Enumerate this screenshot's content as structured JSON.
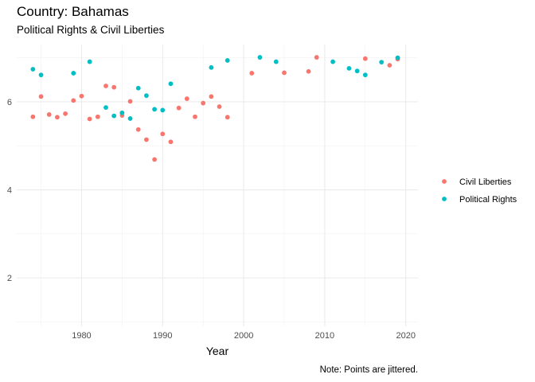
{
  "header": {
    "title": "Country: Bahamas",
    "subtitle": "Political Rights & Civil Liberties",
    "caption": "Note: Points are jittered."
  },
  "chart_data": {
    "type": "scatter",
    "xlabel": "Year",
    "ylabel": "",
    "xlim": [
      1972,
      2021.5
    ],
    "ylim": [
      0.9,
      7.3
    ],
    "x_ticks": [
      1980,
      1990,
      2000,
      2010,
      2020
    ],
    "y_ticks": [
      2,
      4,
      6
    ],
    "grid": true,
    "legend_position": "right",
    "series": [
      {
        "name": "Civil Liberties",
        "color": "#F8766D",
        "points": [
          {
            "x": 1974,
            "y": 5.66
          },
          {
            "x": 1975,
            "y": 6.12
          },
          {
            "x": 1976,
            "y": 5.71
          },
          {
            "x": 1977,
            "y": 5.65
          },
          {
            "x": 1978,
            "y": 5.73
          },
          {
            "x": 1979,
            "y": 6.03
          },
          {
            "x": 1980,
            "y": 6.13
          },
          {
            "x": 1981,
            "y": 5.61
          },
          {
            "x": 1982,
            "y": 5.66
          },
          {
            "x": 1983,
            "y": 6.36
          },
          {
            "x": 1984,
            "y": 6.33
          },
          {
            "x": 1985,
            "y": 5.69
          },
          {
            "x": 1986,
            "y": 6.01
          },
          {
            "x": 1987,
            "y": 5.37
          },
          {
            "x": 1988,
            "y": 5.14
          },
          {
            "x": 1989,
            "y": 4.69
          },
          {
            "x": 1990,
            "y": 5.27
          },
          {
            "x": 1991,
            "y": 5.09
          },
          {
            "x": 1992,
            "y": 5.86
          },
          {
            "x": 1993,
            "y": 6.07
          },
          {
            "x": 1994,
            "y": 5.66
          },
          {
            "x": 1995,
            "y": 5.97
          },
          {
            "x": 1996,
            "y": 6.12
          },
          {
            "x": 1997,
            "y": 5.89
          },
          {
            "x": 1998,
            "y": 5.65
          },
          {
            "x": 2001,
            "y": 6.65
          },
          {
            "x": 2005,
            "y": 6.66
          },
          {
            "x": 2008,
            "y": 6.69
          },
          {
            "x": 2009,
            "y": 7.01
          },
          {
            "x": 2015,
            "y": 6.98
          },
          {
            "x": 2018,
            "y": 6.83
          },
          {
            "x": 2019,
            "y": 6.97
          }
        ]
      },
      {
        "name": "Political Rights",
        "color": "#00BFC4",
        "points": [
          {
            "x": 1974,
            "y": 6.74
          },
          {
            "x": 1975,
            "y": 6.61
          },
          {
            "x": 1979,
            "y": 6.65
          },
          {
            "x": 1981,
            "y": 6.91
          },
          {
            "x": 1983,
            "y": 5.87
          },
          {
            "x": 1984,
            "y": 5.68
          },
          {
            "x": 1985,
            "y": 5.75
          },
          {
            "x": 1986,
            "y": 5.62
          },
          {
            "x": 1987,
            "y": 6.31
          },
          {
            "x": 1988,
            "y": 6.14
          },
          {
            "x": 1989,
            "y": 5.83
          },
          {
            "x": 1990,
            "y": 5.81
          },
          {
            "x": 1991,
            "y": 6.41
          },
          {
            "x": 1996,
            "y": 6.78
          },
          {
            "x": 1998,
            "y": 6.94
          },
          {
            "x": 2002,
            "y": 7.01
          },
          {
            "x": 2004,
            "y": 6.91
          },
          {
            "x": 2011,
            "y": 6.91
          },
          {
            "x": 2013,
            "y": 6.76
          },
          {
            "x": 2014,
            "y": 6.7
          },
          {
            "x": 2015,
            "y": 6.61
          },
          {
            "x": 2017,
            "y": 6.9
          },
          {
            "x": 2019,
            "y": 7.0
          }
        ]
      }
    ]
  }
}
